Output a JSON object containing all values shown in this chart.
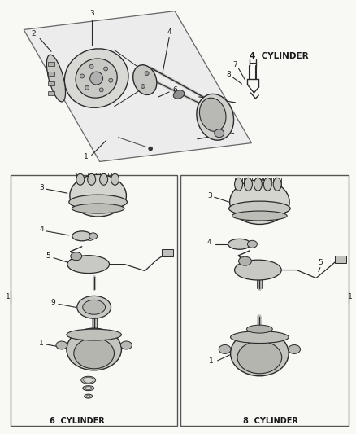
{
  "bg_color": "#f5f5f0",
  "fig_width": 4.39,
  "fig_height": 5.33,
  "dpi": 100,
  "labels": {
    "4_cylinder": "4  CYLINDER",
    "6_cylinder": "6  CYLINDER",
    "8_cylinder": "8  CYLINDER"
  },
  "lc": "#2a2a2a",
  "tc": "#1a1a1a",
  "gray": "#888888",
  "box_lc": "#555555"
}
